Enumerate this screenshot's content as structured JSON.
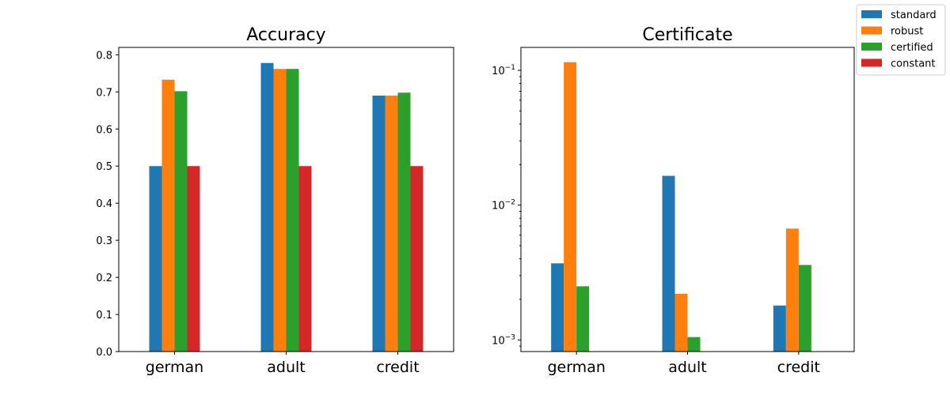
{
  "chart_data": [
    {
      "type": "bar",
      "title": "Accuracy",
      "categories": [
        "german",
        "adult",
        "credit"
      ],
      "ylim": [
        0,
        0.82
      ],
      "yscale": "linear",
      "yticks": [
        {
          "value": 0.0,
          "label": "0.0"
        },
        {
          "value": 0.1,
          "label": "0.1"
        },
        {
          "value": 0.2,
          "label": "0.2"
        },
        {
          "value": 0.3,
          "label": "0.3"
        },
        {
          "value": 0.4,
          "label": "0.4"
        },
        {
          "value": 0.5,
          "label": "0.5"
        },
        {
          "value": 0.6,
          "label": "0.6"
        },
        {
          "value": 0.7,
          "label": "0.7"
        },
        {
          "value": 0.8,
          "label": "0.8"
        }
      ],
      "series": [
        {
          "name": "standard",
          "values": [
            0.5,
            0.778,
            0.69
          ]
        },
        {
          "name": "robust",
          "values": [
            0.733,
            0.762,
            0.69
          ]
        },
        {
          "name": "certified",
          "values": [
            0.702,
            0.762,
            0.698
          ]
        },
        {
          "name": "constant",
          "values": [
            0.5,
            0.5,
            0.5
          ]
        }
      ],
      "grid": false
    },
    {
      "type": "bar",
      "title": "Certificate",
      "categories": [
        "german",
        "adult",
        "credit"
      ],
      "ylim": [
        0.00082,
        0.148
      ],
      "yscale": "log",
      "yticks": [
        {
          "value": 0.1,
          "base": "10",
          "exp": "−1"
        },
        {
          "value": 0.01,
          "base": "10",
          "exp": "−2"
        },
        {
          "value": 0.001,
          "base": "10",
          "exp": "−3"
        }
      ],
      "series": [
        {
          "name": "standard",
          "values": [
            0.0037,
            0.0165,
            0.0018
          ]
        },
        {
          "name": "robust",
          "values": [
            0.115,
            0.0022,
            0.0067
          ]
        },
        {
          "name": "certified",
          "values": [
            0.0025,
            0.00105,
            0.0036
          ]
        },
        {
          "name": "constant",
          "values": [
            null,
            null,
            null
          ]
        }
      ],
      "grid": false
    }
  ],
  "legend": {
    "placement": "top-right",
    "items": [
      {
        "label": "standard",
        "color": "#1f77b4"
      },
      {
        "label": "robust",
        "color": "#ff7f0e"
      },
      {
        "label": "certified",
        "color": "#2ca02c"
      },
      {
        "label": "constant",
        "color": "#d62728"
      }
    ]
  },
  "colors": {
    "standard": "#1f77b4",
    "robust": "#ff7f0e",
    "certified": "#2ca02c",
    "constant": "#d62728"
  }
}
